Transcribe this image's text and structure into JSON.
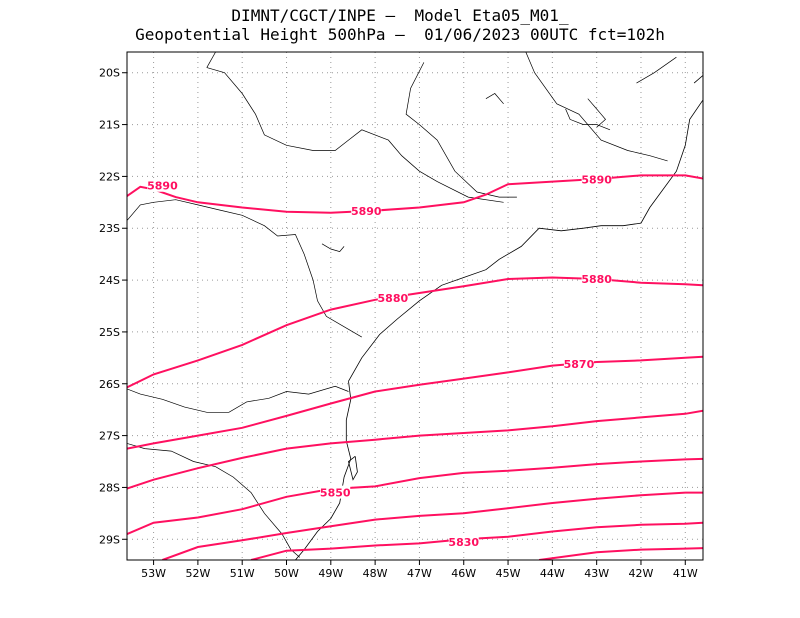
{
  "title": {
    "line1": "DIMNT/CGCT/INPE —  Model Eta05_M01_",
    "line2": "Geopotential Height 500hPa —  01/06/2023 00UTC fct=102h"
  },
  "colors": {
    "contour": "#ff1060",
    "coast": "#000000",
    "grid": "#9a9a9a",
    "frame": "#000000"
  },
  "chart_data": {
    "type": "contour-map",
    "variable": "Geopotential Height 500hPa",
    "xlim": [
      -53.6,
      -40.6
    ],
    "ylim": [
      -29.4,
      -19.6
    ],
    "lon_ticks": [
      {
        "value": -53,
        "label": "53W"
      },
      {
        "value": -52,
        "label": "52W"
      },
      {
        "value": -51,
        "label": "51W"
      },
      {
        "value": -50,
        "label": "50W"
      },
      {
        "value": -49,
        "label": "49W"
      },
      {
        "value": -48,
        "label": "48W"
      },
      {
        "value": -47,
        "label": "47W"
      },
      {
        "value": -46,
        "label": "46W"
      },
      {
        "value": -45,
        "label": "45W"
      },
      {
        "value": -44,
        "label": "44W"
      },
      {
        "value": -43,
        "label": "43W"
      },
      {
        "value": -42,
        "label": "42W"
      },
      {
        "value": -41,
        "label": "41W"
      }
    ],
    "lat_ticks": [
      {
        "value": -20,
        "label": "20S"
      },
      {
        "value": -21,
        "label": "21S"
      },
      {
        "value": -22,
        "label": "22S"
      },
      {
        "value": -23,
        "label": "23S"
      },
      {
        "value": -24,
        "label": "24S"
      },
      {
        "value": -25,
        "label": "25S"
      },
      {
        "value": -26,
        "label": "26S"
      },
      {
        "value": -27,
        "label": "27S"
      },
      {
        "value": -28,
        "label": "28S"
      },
      {
        "value": -29,
        "label": "29S"
      }
    ],
    "grid": true,
    "contours": [
      {
        "level": 5890,
        "points": [
          [
            -53.6,
            -22.38
          ],
          [
            -53.3,
            -22.2
          ],
          [
            -53.0,
            -22.25
          ],
          [
            -52.5,
            -22.4
          ],
          [
            -52,
            -22.5
          ],
          [
            -51,
            -22.6
          ],
          [
            -50,
            -22.68
          ],
          [
            -49,
            -22.7
          ],
          [
            -48,
            -22.66
          ],
          [
            -47,
            -22.6
          ],
          [
            -46,
            -22.5
          ],
          [
            -45.5,
            -22.35
          ],
          [
            -45,
            -22.15
          ],
          [
            -44,
            -22.1
          ],
          [
            -43,
            -22.05
          ],
          [
            -42,
            -21.98
          ],
          [
            -41,
            -21.98
          ],
          [
            -40.6,
            -22.04
          ]
        ],
        "labels": [
          {
            "lon": -52.8,
            "lat": -22.18,
            "text": "5890"
          },
          {
            "lon": -48.2,
            "lat": -22.67,
            "text": "5890"
          },
          {
            "lon": -43.0,
            "lat": -22.06,
            "text": "5890"
          }
        ]
      },
      {
        "level": 5880,
        "points": [
          [
            -53.6,
            -26.07
          ],
          [
            -53,
            -25.82
          ],
          [
            -52,
            -25.55
          ],
          [
            -51,
            -25.25
          ],
          [
            -50,
            -24.87
          ],
          [
            -49,
            -24.57
          ],
          [
            -48,
            -24.38
          ],
          [
            -47,
            -24.25
          ],
          [
            -46,
            -24.12
          ],
          [
            -45,
            -23.98
          ],
          [
            -44,
            -23.95
          ],
          [
            -43,
            -23.98
          ],
          [
            -42,
            -24.05
          ],
          [
            -41,
            -24.08
          ],
          [
            -40.6,
            -24.1
          ]
        ],
        "labels": [
          {
            "lon": -47.6,
            "lat": -24.35,
            "text": "5880"
          },
          {
            "lon": -43.0,
            "lat": -23.98,
            "text": "5880"
          }
        ]
      },
      {
        "level": 5870,
        "points": [
          [
            -53.6,
            -27.25
          ],
          [
            -53,
            -27.15
          ],
          [
            -52,
            -27.0
          ],
          [
            -51,
            -26.85
          ],
          [
            -50,
            -26.62
          ],
          [
            -49,
            -26.38
          ],
          [
            -48,
            -26.15
          ],
          [
            -47,
            -26.02
          ],
          [
            -46,
            -25.9
          ],
          [
            -45,
            -25.78
          ],
          [
            -44,
            -25.65
          ],
          [
            -43,
            -25.58
          ],
          [
            -42,
            -25.55
          ],
          [
            -41,
            -25.5
          ],
          [
            -40.6,
            -25.48
          ]
        ],
        "labels": [
          {
            "lon": -43.4,
            "lat": -25.62,
            "text": "5870"
          }
        ]
      },
      {
        "level": 5860,
        "points": [
          [
            -53.6,
            -28.02
          ],
          [
            -53,
            -27.85
          ],
          [
            -52,
            -27.63
          ],
          [
            -51,
            -27.43
          ],
          [
            -50,
            -27.25
          ],
          [
            -49,
            -27.15
          ],
          [
            -48,
            -27.08
          ],
          [
            -47,
            -27.0
          ],
          [
            -46,
            -26.95
          ],
          [
            -45,
            -26.9
          ],
          [
            -44,
            -26.82
          ],
          [
            -43,
            -26.72
          ],
          [
            -42,
            -26.65
          ],
          [
            -41,
            -26.58
          ],
          [
            -40.6,
            -26.52
          ]
        ],
        "labels": []
      },
      {
        "level": 5850,
        "points": [
          [
            -53.6,
            -28.9
          ],
          [
            -53,
            -28.68
          ],
          [
            -52,
            -28.58
          ],
          [
            -51,
            -28.42
          ],
          [
            -50,
            -28.18
          ],
          [
            -49,
            -28.03
          ],
          [
            -48,
            -27.98
          ],
          [
            -47,
            -27.82
          ],
          [
            -46,
            -27.72
          ],
          [
            -45,
            -27.68
          ],
          [
            -44,
            -27.62
          ],
          [
            -43,
            -27.55
          ],
          [
            -42,
            -27.5
          ],
          [
            -41,
            -27.46
          ],
          [
            -40.6,
            -27.45
          ]
        ],
        "labels": [
          {
            "lon": -48.9,
            "lat": -28.1,
            "text": "5850"
          }
        ]
      },
      {
        "level": 5840,
        "points": [
          [
            -52.8,
            -29.4
          ],
          [
            -52,
            -29.15
          ],
          [
            -51,
            -29.02
          ],
          [
            -50,
            -28.88
          ],
          [
            -49,
            -28.75
          ],
          [
            -48,
            -28.62
          ],
          [
            -47,
            -28.55
          ],
          [
            -46,
            -28.5
          ],
          [
            -45,
            -28.4
          ],
          [
            -44,
            -28.3
          ],
          [
            -43,
            -28.22
          ],
          [
            -42,
            -28.15
          ],
          [
            -41,
            -28.1
          ],
          [
            -40.6,
            -28.1
          ]
        ],
        "labels": []
      },
      {
        "level": 5830,
        "points": [
          [
            -50.8,
            -29.4
          ],
          [
            -50,
            -29.22
          ],
          [
            -49,
            -29.18
          ],
          [
            -48,
            -29.12
          ],
          [
            -47,
            -29.08
          ],
          [
            -46,
            -29.0
          ],
          [
            -45,
            -28.95
          ],
          [
            -44,
            -28.85
          ],
          [
            -43,
            -28.77
          ],
          [
            -42,
            -28.72
          ],
          [
            -41,
            -28.7
          ],
          [
            -40.6,
            -28.68
          ]
        ],
        "labels": [
          {
            "lon": -46.0,
            "lat": -29.05,
            "text": "5830"
          }
        ]
      },
      {
        "level": 5820,
        "points": [
          [
            -44.3,
            -29.4
          ],
          [
            -43,
            -29.25
          ],
          [
            -42,
            -29.2
          ],
          [
            -41,
            -29.18
          ],
          [
            -40.6,
            -29.17
          ]
        ],
        "labels": []
      }
    ],
    "boundaries": [
      [
        [
          -53.6,
          -22.85
        ],
        [
          -53.3,
          -22.55
        ],
        [
          -53.0,
          -22.5
        ],
        [
          -52.5,
          -22.45
        ],
        [
          -52.0,
          -22.55
        ],
        [
          -51.5,
          -22.65
        ],
        [
          -51.0,
          -22.75
        ],
        [
          -50.5,
          -22.95
        ],
        [
          -50.2,
          -23.15
        ],
        [
          -49.8,
          -23.12
        ],
        [
          -49.6,
          -23.5
        ],
        [
          -49.4,
          -24.0
        ],
        [
          -49.3,
          -24.4
        ],
        [
          -49.1,
          -24.7
        ],
        [
          -48.6,
          -24.95
        ],
        [
          -48.3,
          -25.1
        ]
      ],
      [
        [
          -53.6,
          -26.1
        ],
        [
          -53.3,
          -26.2
        ],
        [
          -52.8,
          -26.3
        ],
        [
          -52.3,
          -26.45
        ],
        [
          -51.8,
          -26.55
        ],
        [
          -51.3,
          -26.55
        ],
        [
          -50.9,
          -26.35
        ],
        [
          -50.4,
          -26.28
        ],
        [
          -50.0,
          -26.15
        ],
        [
          -49.5,
          -26.2
        ],
        [
          -48.9,
          -26.05
        ],
        [
          -48.6,
          -26.15
        ]
      ],
      [
        [
          -53.6,
          -27.15
        ],
        [
          -53.2,
          -27.25
        ],
        [
          -52.6,
          -27.3
        ],
        [
          -52.1,
          -27.5
        ],
        [
          -51.6,
          -27.6
        ],
        [
          -51.2,
          -27.8
        ],
        [
          -50.8,
          -28.1
        ],
        [
          -50.5,
          -28.5
        ],
        [
          -50.1,
          -28.9
        ],
        [
          -49.9,
          -29.2
        ],
        [
          -49.7,
          -29.35
        ]
      ],
      [
        [
          -51.8,
          -19.9
        ],
        [
          -51.4,
          -20.0
        ],
        [
          -51.0,
          -20.4
        ],
        [
          -50.7,
          -20.8
        ],
        [
          -50.5,
          -21.2
        ],
        [
          -50.0,
          -21.4
        ],
        [
          -49.4,
          -21.5
        ],
        [
          -48.9,
          -21.5
        ],
        [
          -48.6,
          -21.3
        ],
        [
          -48.3,
          -21.1
        ],
        [
          -47.7,
          -21.3
        ],
        [
          -47.4,
          -21.6
        ],
        [
          -47.0,
          -21.9
        ],
        [
          -46.6,
          -22.1
        ],
        [
          -45.9,
          -22.4
        ],
        [
          -45.1,
          -22.5
        ]
      ],
      [
        [
          -51.6,
          -19.6
        ],
        [
          -51.8,
          -19.9
        ]
      ],
      [
        [
          -46.9,
          -19.8
        ],
        [
          -47.2,
          -20.3
        ],
        [
          -47.3,
          -20.8
        ],
        [
          -47.0,
          -21.0
        ],
        [
          -46.6,
          -21.3
        ],
        [
          -46.2,
          -21.9
        ],
        [
          -45.7,
          -22.3
        ],
        [
          -45.2,
          -22.4
        ],
        [
          -44.8,
          -22.4
        ]
      ],
      [
        [
          -44.6,
          -19.6
        ],
        [
          -44.4,
          -20.0
        ],
        [
          -43.9,
          -20.6
        ],
        [
          -43.4,
          -20.8
        ],
        [
          -42.9,
          -21.3
        ],
        [
          -42.3,
          -21.5
        ],
        [
          -41.8,
          -21.6
        ],
        [
          -41.4,
          -21.7
        ]
      ],
      [
        [
          -42.1,
          -20.2
        ],
        [
          -41.7,
          -20.0
        ],
        [
          -41.2,
          -19.7
        ]
      ]
    ],
    "coastline": [
      [
        [
          -48.6,
          -25.95
        ],
        [
          -48.55,
          -26.3
        ],
        [
          -48.65,
          -26.7
        ],
        [
          -48.65,
          -27.1
        ],
        [
          -48.55,
          -27.45
        ],
        [
          -48.7,
          -27.8
        ],
        [
          -48.8,
          -28.3
        ],
        [
          -49.0,
          -28.6
        ],
        [
          -49.3,
          -28.85
        ],
        [
          -49.6,
          -29.2
        ],
        [
          -49.8,
          -29.4
        ]
      ],
      [
        [
          -48.6,
          -25.95
        ],
        [
          -48.3,
          -25.5
        ],
        [
          -47.9,
          -25.05
        ],
        [
          -47.5,
          -24.75
        ],
        [
          -47.0,
          -24.4
        ],
        [
          -46.5,
          -24.1
        ],
        [
          -46.0,
          -23.95
        ],
        [
          -45.5,
          -23.8
        ],
        [
          -45.2,
          -23.6
        ],
        [
          -44.7,
          -23.35
        ],
        [
          -44.3,
          -23.0
        ],
        [
          -43.8,
          -23.05
        ],
        [
          -43.3,
          -23.0
        ],
        [
          -42.9,
          -22.95
        ],
        [
          -42.4,
          -22.95
        ],
        [
          -42.0,
          -22.9
        ],
        [
          -41.8,
          -22.6
        ],
        [
          -41.2,
          -21.9
        ],
        [
          -41.0,
          -21.4
        ],
        [
          -40.9,
          -20.9
        ],
        [
          -40.5,
          -20.4
        ]
      ],
      [
        [
          -48.45,
          -27.4
        ],
        [
          -48.4,
          -27.7
        ],
        [
          -48.5,
          -27.85
        ],
        [
          -48.6,
          -27.5
        ],
        [
          -48.45,
          -27.4
        ]
      ],
      [
        [
          -40.8,
          -20.2
        ],
        [
          -40.4,
          -19.9
        ],
        [
          -40.1,
          -19.6
        ]
      ]
    ],
    "rivers": [
      [
        [
          -43.7,
          -20.7
        ],
        [
          -43.6,
          -20.9
        ],
        [
          -43.3,
          -21.0
        ],
        [
          -43.0,
          -21.0
        ],
        [
          -42.7,
          -21.1
        ]
      ],
      [
        [
          -43.2,
          -20.5
        ],
        [
          -43.0,
          -20.7
        ],
        [
          -42.9,
          -20.8
        ],
        [
          -42.8,
          -20.9
        ],
        [
          -43.0,
          -21.05
        ]
      ],
      [
        [
          -49.2,
          -23.3
        ],
        [
          -49.0,
          -23.4
        ],
        [
          -48.8,
          -23.45
        ],
        [
          -48.7,
          -23.35
        ]
      ],
      [
        [
          -45.5,
          -20.5
        ],
        [
          -45.3,
          -20.4
        ],
        [
          -45.1,
          -20.6
        ]
      ]
    ]
  }
}
